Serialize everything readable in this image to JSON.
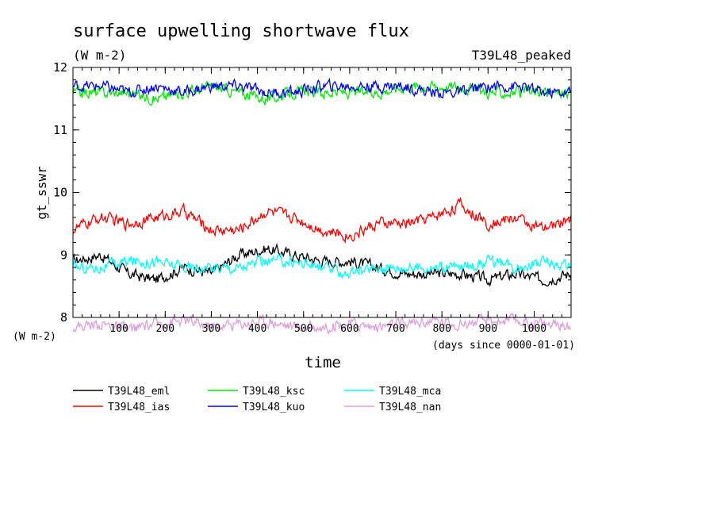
{
  "chart_data": {
    "type": "line",
    "title": "surface upwelling shortwave flux",
    "subtitle": "(W m-2)",
    "run_label": "T39L48_peaked",
    "ylabel": "gt_sswr",
    "xlabel": "time",
    "x_units": "(days since 0000-01-01)",
    "y_units": "(W m-2)",
    "ylim": [
      8,
      12
    ],
    "xlim": [
      0,
      1080
    ],
    "yticks": [
      "8",
      "9",
      "10",
      "11",
      "12"
    ],
    "xticks": [
      "100",
      "200",
      "300",
      "400",
      "500",
      "600",
      "700",
      "800",
      "900",
      "1000"
    ],
    "grid": false,
    "legend_position": "bottom",
    "series": [
      {
        "name": "T39L48_eml",
        "color": "#000000",
        "x": [
          0,
          60,
          120,
          180,
          240,
          300,
          360,
          420,
          480,
          540,
          600,
          660,
          720,
          780,
          840,
          900,
          960,
          1020,
          1080
        ],
        "values": [
          8.9,
          9.0,
          8.7,
          8.6,
          8.8,
          8.7,
          9.0,
          9.1,
          9.0,
          8.9,
          8.9,
          8.8,
          8.7,
          8.7,
          8.7,
          8.6,
          8.7,
          8.6,
          8.7
        ]
      },
      {
        "name": "T39L48_ias",
        "color": "#ff0000",
        "x": [
          0,
          60,
          120,
          180,
          240,
          300,
          360,
          420,
          480,
          540,
          600,
          660,
          720,
          780,
          840,
          900,
          960,
          1020,
          1080
        ],
        "values": [
          9.4,
          9.6,
          9.5,
          9.6,
          9.7,
          9.4,
          9.4,
          9.7,
          9.6,
          9.4,
          9.3,
          9.5,
          9.5,
          9.6,
          9.8,
          9.5,
          9.6,
          9.4,
          9.6
        ]
      },
      {
        "name": "T39L48_ksc",
        "color": "#00ee00",
        "x": [
          0,
          60,
          120,
          180,
          240,
          300,
          360,
          420,
          480,
          540,
          600,
          660,
          720,
          780,
          840,
          900,
          960,
          1020,
          1080
        ],
        "values": [
          11.6,
          11.6,
          11.6,
          11.5,
          11.6,
          11.7,
          11.6,
          11.5,
          11.6,
          11.6,
          11.6,
          11.6,
          11.7,
          11.7,
          11.7,
          11.6,
          11.6,
          11.6,
          11.6
        ]
      },
      {
        "name": "T39L48_kuo",
        "color": "#0000ff",
        "x": [
          0,
          60,
          120,
          180,
          240,
          300,
          360,
          420,
          480,
          540,
          600,
          660,
          720,
          780,
          840,
          900,
          960,
          1020,
          1080
        ],
        "values": [
          11.7,
          11.7,
          11.6,
          11.7,
          11.6,
          11.7,
          11.7,
          11.6,
          11.6,
          11.7,
          11.7,
          11.7,
          11.7,
          11.6,
          11.6,
          11.7,
          11.7,
          11.6,
          11.6
        ]
      },
      {
        "name": "T39L48_mca",
        "color": "#00ffff",
        "x": [
          0,
          60,
          120,
          180,
          240,
          300,
          360,
          420,
          480,
          540,
          600,
          660,
          720,
          780,
          840,
          900,
          960,
          1020,
          1080
        ],
        "values": [
          8.8,
          8.8,
          8.9,
          8.9,
          8.8,
          8.8,
          8.8,
          8.9,
          8.9,
          8.8,
          8.7,
          8.8,
          8.8,
          8.8,
          8.8,
          8.9,
          8.8,
          8.9,
          8.8
        ]
      },
      {
        "name": "T39L48_nan",
        "color": "#dda0dd",
        "x": [
          0,
          60,
          120,
          180,
          240,
          300,
          360,
          420,
          480,
          540,
          600,
          660,
          720,
          780,
          840,
          900,
          960,
          1020,
          1080
        ],
        "values": [
          7.85,
          7.9,
          7.8,
          7.9,
          7.95,
          7.85,
          7.9,
          7.95,
          7.85,
          7.85,
          7.9,
          7.85,
          7.9,
          7.95,
          7.9,
          7.95,
          7.95,
          7.9,
          7.85
        ]
      }
    ]
  }
}
